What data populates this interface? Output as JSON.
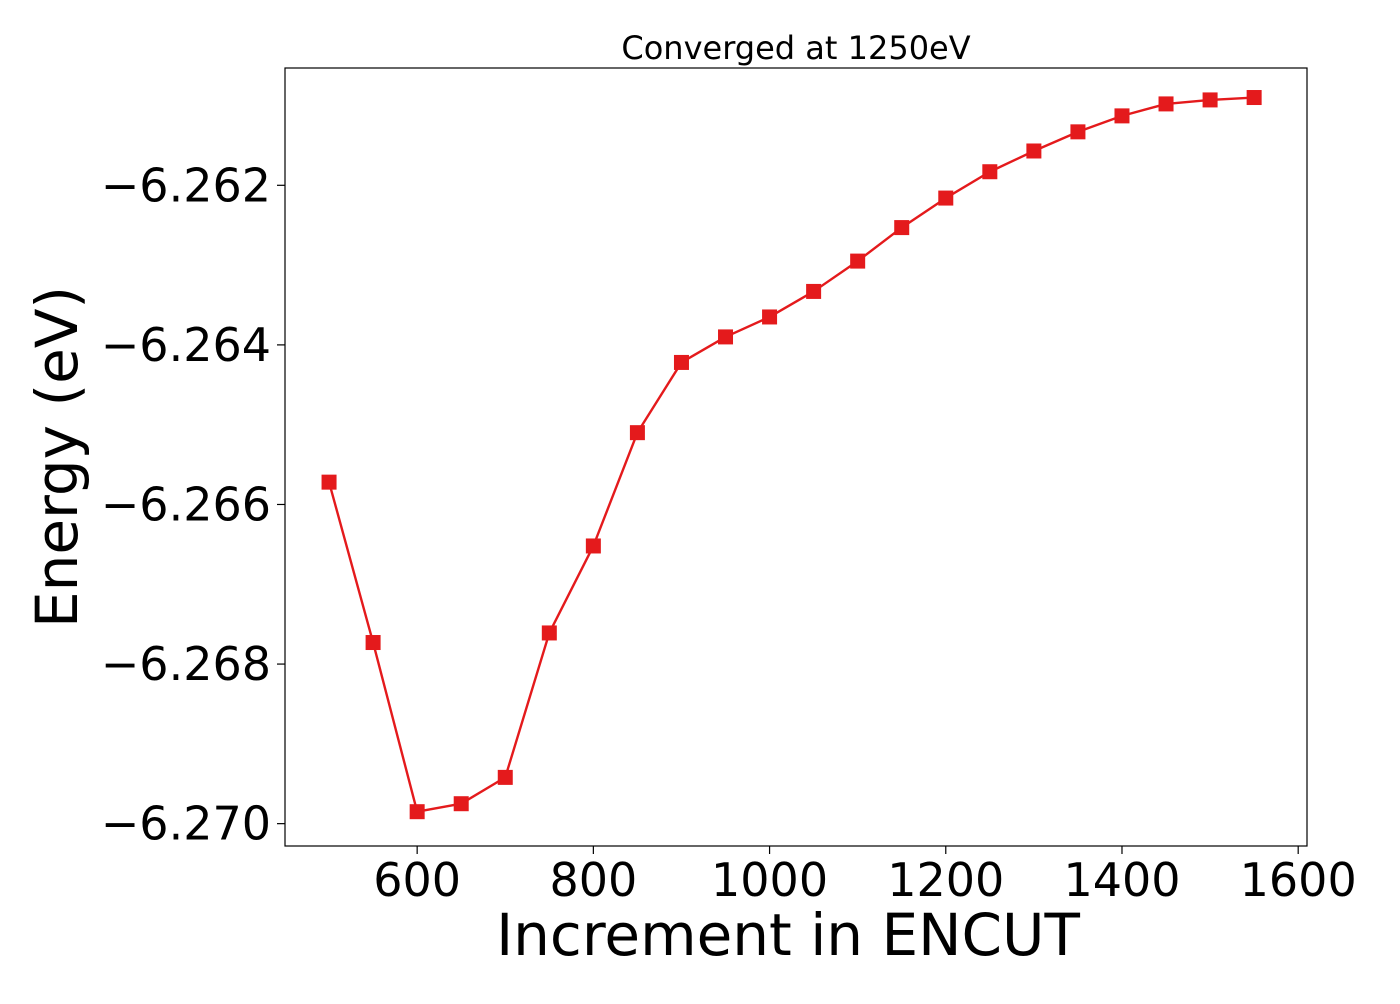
{
  "chart_data": {
    "type": "line",
    "title": "Converged at 1250eV",
    "xlabel": "Increment in ENCUT",
    "ylabel": "Energy (eV)",
    "xlim": [
      450,
      1610
    ],
    "ylim": [
      -6.27028,
      -6.26053
    ],
    "x_ticks": [
      600,
      800,
      1000,
      1200,
      1400,
      1600
    ],
    "x_tick_labels": [
      "600",
      "800",
      "1000",
      "1200",
      "1400",
      "1600"
    ],
    "y_ticks": [
      -6.262,
      -6.264,
      -6.266,
      -6.268,
      -6.27
    ],
    "y_tick_labels": [
      "−6.262",
      "−6.264",
      "−6.266",
      "−6.268",
      "−6.270"
    ],
    "grid": false,
    "series": [
      {
        "color": "#e41a1c",
        "marker": "square",
        "x": [
          500,
          550,
          600,
          650,
          700,
          750,
          800,
          850,
          900,
          950,
          1000,
          1050,
          1100,
          1150,
          1200,
          1250,
          1300,
          1350,
          1400,
          1450,
          1500,
          1550
        ],
        "y": [
          -6.26572,
          -6.26773,
          -6.26985,
          -6.26975,
          -6.26942,
          -6.26761,
          -6.26652,
          -6.2651,
          -6.26422,
          -6.2639,
          -6.26365,
          -6.26333,
          -6.26295,
          -6.26253,
          -6.26216,
          -6.26183,
          -6.26157,
          -6.26133,
          -6.26113,
          -6.26098,
          -6.26093,
          -6.2609
        ]
      }
    ]
  }
}
